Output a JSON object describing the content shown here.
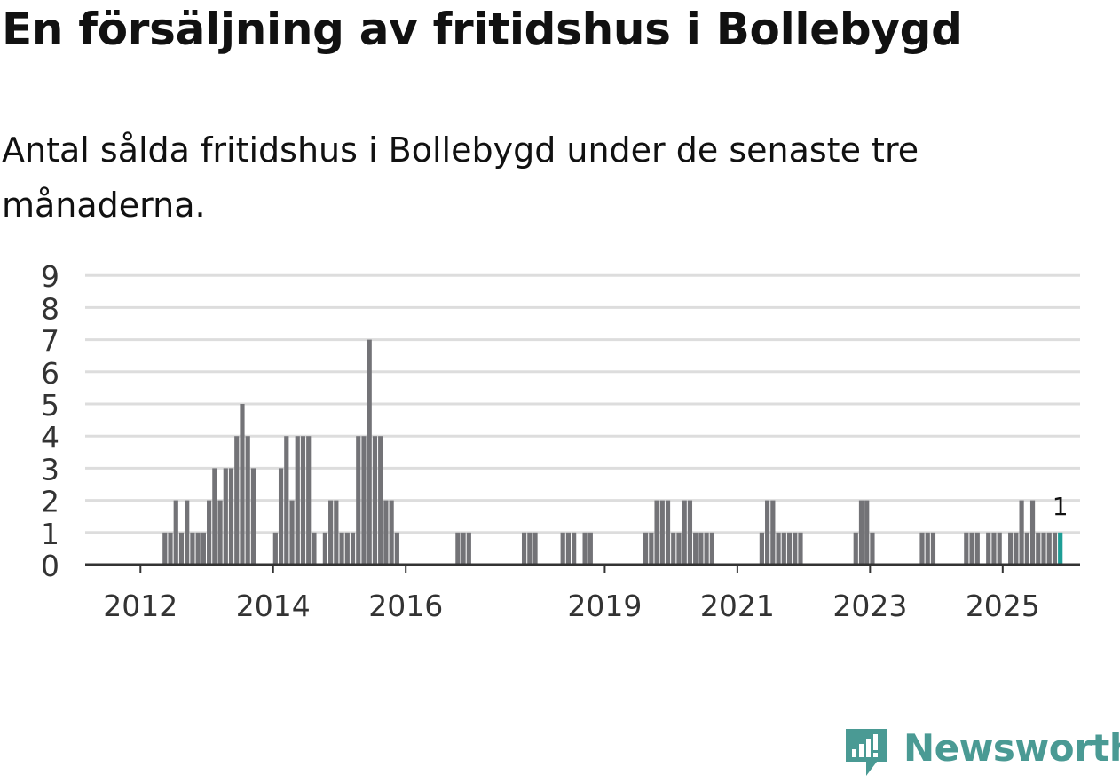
{
  "header": {
    "title": "En försäljning av fritidshus i Bollebygd",
    "subtitle": "Antal sålda fritidshus i Bollebygd under de senaste tre månaderna."
  },
  "brand": {
    "name": "Newsworthy",
    "color": "#4a9a94"
  },
  "colors": {
    "bar": "#737377",
    "highlight": "#1e9e96",
    "grid": "#dddddd",
    "axis": "#333333"
  },
  "chart_data": {
    "type": "bar",
    "title": "En försäljning av fritidshus i Bollebygd",
    "xlabel": "",
    "ylabel": "",
    "ylim": [
      0,
      9
    ],
    "yticks": [
      "0",
      "1",
      "2",
      "3",
      "4",
      "5",
      "6",
      "7",
      "8",
      "9"
    ],
    "x_start": "2011-03",
    "x_end": "2026-03",
    "xticks": [
      {
        "label": "2012",
        "date": "2012-01"
      },
      {
        "label": "2014",
        "date": "2014-01"
      },
      {
        "label": "2016",
        "date": "2016-01"
      },
      {
        "label": "2019",
        "date": "2019-01"
      },
      {
        "label": "2021",
        "date": "2021-01"
      },
      {
        "label": "2023",
        "date": "2023-01"
      },
      {
        "label": "2025",
        "date": "2025-01"
      }
    ],
    "highlight_label": "1",
    "series": [
      {
        "name": "Antal sålda fritidshus",
        "values": [
          {
            "date": "2012-05",
            "value": 1
          },
          {
            "date": "2012-06",
            "value": 1
          },
          {
            "date": "2012-07",
            "value": 2
          },
          {
            "date": "2012-08",
            "value": 1
          },
          {
            "date": "2012-09",
            "value": 2
          },
          {
            "date": "2012-10",
            "value": 1
          },
          {
            "date": "2012-11",
            "value": 1
          },
          {
            "date": "2012-12",
            "value": 1
          },
          {
            "date": "2013-01",
            "value": 2
          },
          {
            "date": "2013-02",
            "value": 3
          },
          {
            "date": "2013-03",
            "value": 2
          },
          {
            "date": "2013-04",
            "value": 3
          },
          {
            "date": "2013-05",
            "value": 3
          },
          {
            "date": "2013-06",
            "value": 4
          },
          {
            "date": "2013-07",
            "value": 5
          },
          {
            "date": "2013-08",
            "value": 4
          },
          {
            "date": "2013-09",
            "value": 3
          },
          {
            "date": "2014-01",
            "value": 1
          },
          {
            "date": "2014-02",
            "value": 3
          },
          {
            "date": "2014-03",
            "value": 4
          },
          {
            "date": "2014-04",
            "value": 2
          },
          {
            "date": "2014-05",
            "value": 4
          },
          {
            "date": "2014-06",
            "value": 4
          },
          {
            "date": "2014-07",
            "value": 4
          },
          {
            "date": "2014-08",
            "value": 1
          },
          {
            "date": "2014-10",
            "value": 1
          },
          {
            "date": "2014-11",
            "value": 2
          },
          {
            "date": "2014-12",
            "value": 2
          },
          {
            "date": "2015-01",
            "value": 1
          },
          {
            "date": "2015-02",
            "value": 1
          },
          {
            "date": "2015-03",
            "value": 1
          },
          {
            "date": "2015-04",
            "value": 4
          },
          {
            "date": "2015-05",
            "value": 4
          },
          {
            "date": "2015-06",
            "value": 7
          },
          {
            "date": "2015-07",
            "value": 4
          },
          {
            "date": "2015-08",
            "value": 4
          },
          {
            "date": "2015-09",
            "value": 2
          },
          {
            "date": "2015-10",
            "value": 2
          },
          {
            "date": "2015-11",
            "value": 1
          },
          {
            "date": "2016-10",
            "value": 1
          },
          {
            "date": "2016-11",
            "value": 1
          },
          {
            "date": "2016-12",
            "value": 1
          },
          {
            "date": "2017-10",
            "value": 1
          },
          {
            "date": "2017-11",
            "value": 1
          },
          {
            "date": "2017-12",
            "value": 1
          },
          {
            "date": "2018-05",
            "value": 1
          },
          {
            "date": "2018-06",
            "value": 1
          },
          {
            "date": "2018-07",
            "value": 1
          },
          {
            "date": "2018-09",
            "value": 1
          },
          {
            "date": "2018-10",
            "value": 1
          },
          {
            "date": "2019-08",
            "value": 1
          },
          {
            "date": "2019-09",
            "value": 1
          },
          {
            "date": "2019-10",
            "value": 2
          },
          {
            "date": "2019-11",
            "value": 2
          },
          {
            "date": "2019-12",
            "value": 2
          },
          {
            "date": "2020-01",
            "value": 1
          },
          {
            "date": "2020-02",
            "value": 1
          },
          {
            "date": "2020-03",
            "value": 2
          },
          {
            "date": "2020-04",
            "value": 2
          },
          {
            "date": "2020-05",
            "value": 1
          },
          {
            "date": "2020-06",
            "value": 1
          },
          {
            "date": "2020-07",
            "value": 1
          },
          {
            "date": "2020-08",
            "value": 1
          },
          {
            "date": "2021-05",
            "value": 1
          },
          {
            "date": "2021-06",
            "value": 2
          },
          {
            "date": "2021-07",
            "value": 2
          },
          {
            "date": "2021-08",
            "value": 1
          },
          {
            "date": "2021-09",
            "value": 1
          },
          {
            "date": "2021-10",
            "value": 1
          },
          {
            "date": "2021-11",
            "value": 1
          },
          {
            "date": "2021-12",
            "value": 1
          },
          {
            "date": "2022-10",
            "value": 1
          },
          {
            "date": "2022-11",
            "value": 2
          },
          {
            "date": "2022-12",
            "value": 2
          },
          {
            "date": "2023-01",
            "value": 1
          },
          {
            "date": "2023-10",
            "value": 1
          },
          {
            "date": "2023-11",
            "value": 1
          },
          {
            "date": "2023-12",
            "value": 1
          },
          {
            "date": "2024-06",
            "value": 1
          },
          {
            "date": "2024-07",
            "value": 1
          },
          {
            "date": "2024-08",
            "value": 1
          },
          {
            "date": "2024-10",
            "value": 1
          },
          {
            "date": "2024-11",
            "value": 1
          },
          {
            "date": "2024-12",
            "value": 1
          },
          {
            "date": "2025-02",
            "value": 1
          },
          {
            "date": "2025-03",
            "value": 1
          },
          {
            "date": "2025-04",
            "value": 2
          },
          {
            "date": "2025-05",
            "value": 1
          },
          {
            "date": "2025-06",
            "value": 2
          },
          {
            "date": "2025-07",
            "value": 1
          },
          {
            "date": "2025-08",
            "value": 1
          },
          {
            "date": "2025-09",
            "value": 1
          },
          {
            "date": "2025-10",
            "value": 1
          },
          {
            "date": "2025-11",
            "value": 1,
            "highlight": true
          }
        ]
      }
    ]
  }
}
